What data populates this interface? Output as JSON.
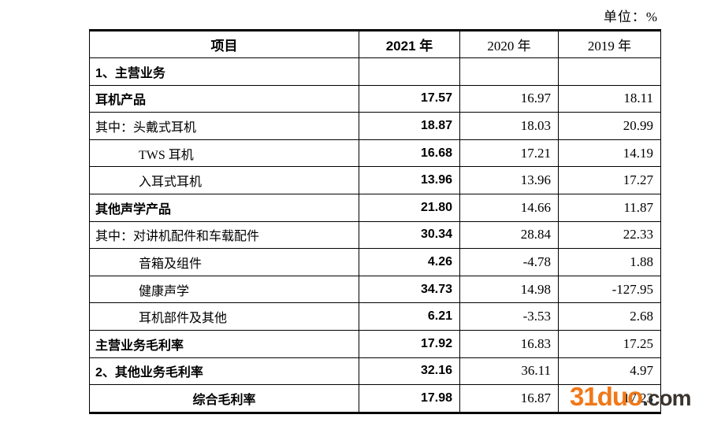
{
  "unit_label": "单位：%",
  "table": {
    "columns": [
      "项目",
      "2021 年",
      "2020 年",
      "2019 年"
    ],
    "rows": [
      {
        "label": "1、主营业务",
        "bold": true,
        "indent": 0,
        "align": "left",
        "values": [
          "",
          "",
          ""
        ]
      },
      {
        "label": "耳机产品",
        "bold": true,
        "indent": 0,
        "align": "left",
        "values": [
          "17.57",
          "16.97",
          "18.11"
        ]
      },
      {
        "label": "其中：头戴式耳机",
        "bold": false,
        "indent": 0,
        "align": "left",
        "values": [
          "18.87",
          "18.03",
          "20.99"
        ]
      },
      {
        "label": "TWS 耳机",
        "bold": false,
        "indent": 1,
        "align": "left",
        "values": [
          "16.68",
          "17.21",
          "14.19"
        ]
      },
      {
        "label": "入耳式耳机",
        "bold": false,
        "indent": 1,
        "align": "left",
        "values": [
          "13.96",
          "13.96",
          "17.27"
        ]
      },
      {
        "label": "其他声学产品",
        "bold": true,
        "indent": 0,
        "align": "left",
        "values": [
          "21.80",
          "14.66",
          "11.87"
        ]
      },
      {
        "label": "其中：对讲机配件和车载配件",
        "bold": false,
        "indent": 0,
        "align": "left",
        "values": [
          "30.34",
          "28.84",
          "22.33"
        ]
      },
      {
        "label": "音箱及组件",
        "bold": false,
        "indent": 1,
        "align": "left",
        "values": [
          "4.26",
          "-4.78",
          "1.88"
        ]
      },
      {
        "label": "健康声学",
        "bold": false,
        "indent": 1,
        "align": "left",
        "values": [
          "34.73",
          "14.98",
          "-127.95"
        ]
      },
      {
        "label": "耳机部件及其他",
        "bold": false,
        "indent": 1,
        "align": "left",
        "values": [
          "6.21",
          "-3.53",
          "2.68"
        ]
      },
      {
        "label": "主营业务毛利率",
        "bold": true,
        "indent": 0,
        "align": "left",
        "values": [
          "17.92",
          "16.83",
          "17.25"
        ]
      },
      {
        "label": "2、其他业务毛利率",
        "bold": true,
        "indent": 0,
        "align": "left",
        "values": [
          "32.16",
          "36.11",
          "4.97"
        ]
      },
      {
        "label": "综合毛利率",
        "bold": true,
        "indent": 0,
        "align": "center",
        "values": [
          "17.98",
          "16.87",
          "17.23"
        ]
      }
    ]
  },
  "watermark": {
    "primary": "31duo",
    "secondary": ".com",
    "primary_color": "#F07818",
    "secondary_color": "#3A342E"
  }
}
